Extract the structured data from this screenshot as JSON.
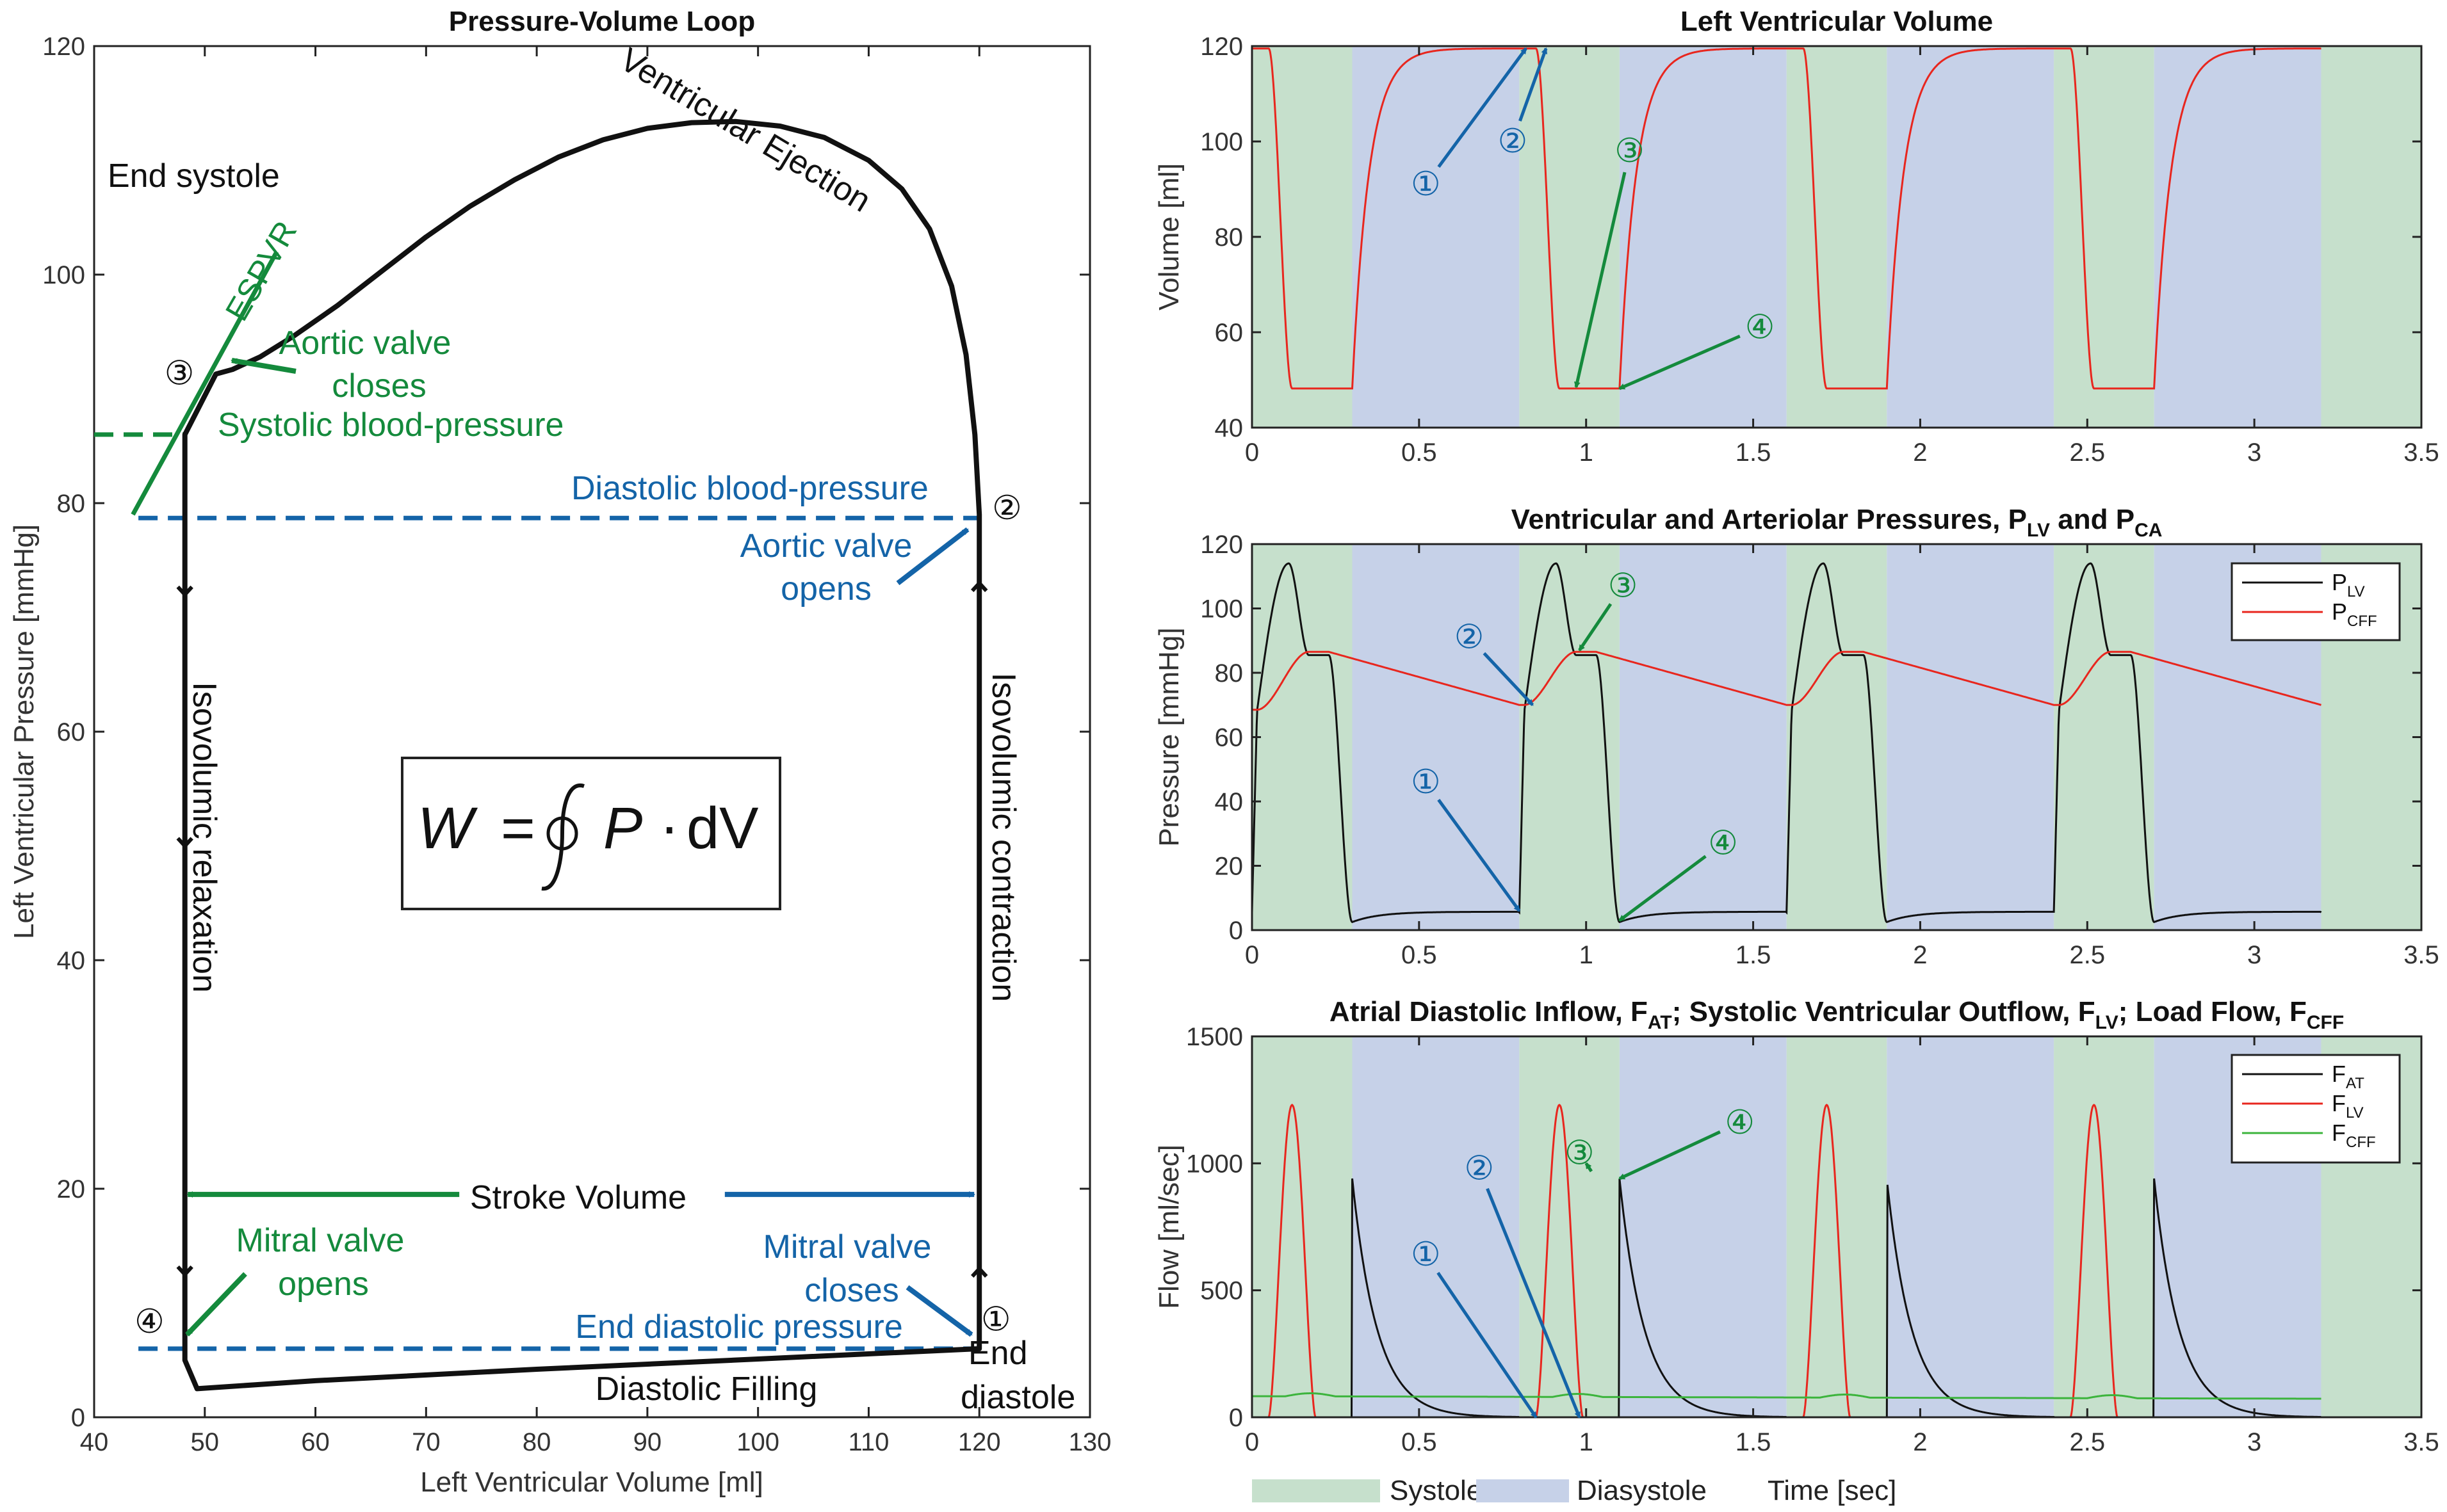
{
  "colors": {
    "systole": "#c6e0cc",
    "diastole": "#c6d1e8",
    "green": "#148a3c",
    "blue": "#1464a8",
    "red": "#e8261e",
    "black": "#111111",
    "cff": "#3cb43c"
  },
  "chart_data": [
    {
      "id": "pv-loop",
      "type": "line",
      "title": "Pressure-Volume Loop",
      "xlabel": "Left Ventricular Volume [ml]",
      "ylabel": "Left Ventricular Pressure [mmHg]",
      "xlim": [
        40,
        130
      ],
      "ylim": [
        0,
        120
      ],
      "xticks": [
        40,
        50,
        60,
        70,
        80,
        90,
        100,
        110,
        120,
        130
      ],
      "yticks": [
        0,
        20,
        40,
        60,
        80,
        100,
        120
      ],
      "loop": {
        "isovolumic_contraction": [
          [
            120,
            6
          ],
          [
            120,
            79
          ]
        ],
        "ejection": [
          [
            120,
            79
          ],
          [
            119.6,
            86
          ],
          [
            118.8,
            93
          ],
          [
            117.5,
            99
          ],
          [
            115.5,
            104
          ],
          [
            113,
            107.5
          ],
          [
            110,
            110
          ],
          [
            106,
            112
          ],
          [
            102,
            113
          ],
          [
            98,
            113.4
          ],
          [
            94,
            113.3
          ],
          [
            90,
            112.8
          ],
          [
            86,
            111.8
          ],
          [
            82,
            110.3
          ],
          [
            78,
            108.3
          ],
          [
            74,
            106
          ],
          [
            70,
            103.3
          ],
          [
            66,
            100.3
          ],
          [
            62,
            97.3
          ],
          [
            58,
            94.6
          ],
          [
            55,
            92.8
          ],
          [
            52.5,
            91.7
          ],
          [
            51,
            91.3
          ]
        ],
        "systolic_descent": [
          [
            51,
            91.3
          ],
          [
            48.2,
            86
          ]
        ],
        "isovolumic_relaxation": [
          [
            48.2,
            86
          ],
          [
            48.2,
            5
          ]
        ],
        "diastolic_filling": [
          [
            48.2,
            5
          ],
          [
            49.3,
            2.5
          ],
          [
            60,
            3.2
          ],
          [
            80,
            4.2
          ],
          [
            100,
            5.1
          ],
          [
            120,
            6
          ]
        ]
      },
      "espvr": {
        "label": "ESPVR",
        "line": [
          [
            43.5,
            79
          ],
          [
            56.5,
            102
          ]
        ]
      },
      "reference_lines": [
        {
          "name": "systolic",
          "y": 86,
          "x": [
            40,
            48.2
          ]
        },
        {
          "name": "diastolic",
          "y": 78.7,
          "x": [
            44,
            120
          ]
        },
        {
          "name": "end-diastolic",
          "y": 6,
          "x": [
            44,
            120
          ]
        }
      ],
      "stroke_volume": {
        "label": "Stroke Volume",
        "x_start": 48,
        "x_end": 120,
        "y": 19.5
      },
      "formula": {
        "W": "W",
        "eq": "=",
        "P": "P",
        "dot": "·",
        "dV": "dV"
      },
      "labels": {
        "end_systole": "End systole",
        "ejection": "Ventricular Ejection",
        "aortic_close_1": "Aortic valve",
        "aortic_close_2": "closes",
        "systolic_bp": "Systolic blood-pressure",
        "diastolic_bp": "Diastolic blood-pressure",
        "aortic_open_1": "Aortic valve",
        "aortic_open_2": "opens",
        "iso_relax": "Isovolumic relaxation",
        "iso_contract": "Isovolumic contraction",
        "mitral_open_1": "Mitral valve",
        "mitral_open_2": "opens",
        "mitral_close_1": "Mitral valve",
        "mitral_close_2": "closes",
        "end_diastolic_p": "End diastolic pressure",
        "diastolic_filling": "Diastolic Filling",
        "end_diastole_1": "End",
        "end_diastole_2": "diastole"
      },
      "markers": [
        {
          "text": "①",
          "x": 121.5,
          "y": 8.5
        },
        {
          "text": "②",
          "x": 122.5,
          "y": 79.5
        },
        {
          "text": "③",
          "x": 47.7,
          "y": 91.3
        },
        {
          "text": "④",
          "x": 45,
          "y": 8.3
        }
      ]
    },
    {
      "id": "lv-volume",
      "type": "line",
      "title": "Left Ventricular Volume",
      "xlabel": "",
      "ylabel": "Volume [ml]",
      "xlim": [
        0,
        3.5
      ],
      "ylim": [
        40,
        120
      ],
      "xticks": [
        0,
        0.5,
        1,
        1.5,
        2,
        2.5,
        3,
        3.5
      ],
      "xtick_labels": [
        "0",
        "0.5",
        "1",
        "1.5",
        "2",
        "2.5",
        "3",
        "3.5"
      ],
      "yticks": [
        40,
        60,
        80,
        100,
        120
      ],
      "period": 0.8,
      "systole_end": 0.3,
      "t_end": 3.2,
      "edv": 119.5,
      "esv": 48.2,
      "series": [
        {
          "name": "V",
          "color": "#e8261e"
        }
      ],
      "markers": [
        {
          "text": "①",
          "x": 0.52,
          "y": 91,
          "color": "blue"
        },
        {
          "text": "②",
          "x": 0.78,
          "y": 100,
          "color": "blue"
        },
        {
          "text": "③",
          "x": 1.13,
          "y": 98,
          "color": "green"
        },
        {
          "text": "④",
          "x": 1.52,
          "y": 61,
          "color": "green"
        }
      ]
    },
    {
      "id": "pressures",
      "type": "line",
      "title": "Ventricular and Arteriolar Pressures, P",
      "title_sub1": "LV",
      "title_mid": " and P",
      "title_sub2": "CA",
      "xlabel": "",
      "ylabel": "Pressure [mmHg]",
      "xlim": [
        0,
        3.5
      ],
      "ylim": [
        0,
        120
      ],
      "xticks": [
        0,
        0.5,
        1,
        1.5,
        2,
        2.5,
        3,
        3.5
      ],
      "xtick_labels": [
        "0",
        "0.5",
        "1",
        "1.5",
        "2",
        "2.5",
        "3",
        "3.5"
      ],
      "yticks": [
        0,
        20,
        40,
        60,
        80,
        100,
        120
      ],
      "series": [
        {
          "name": "P",
          "sub": "LV",
          "color": "#111111"
        },
        {
          "name": "P",
          "sub": "CFF",
          "color": "#e8261e"
        }
      ],
      "markers": [
        {
          "text": "①",
          "x": 0.52,
          "y": 46,
          "color": "blue"
        },
        {
          "text": "②",
          "x": 0.65,
          "y": 91,
          "color": "blue"
        },
        {
          "text": "③",
          "x": 1.11,
          "y": 107,
          "color": "green"
        },
        {
          "text": "④",
          "x": 1.41,
          "y": 27,
          "color": "green"
        }
      ]
    },
    {
      "id": "flows",
      "type": "line",
      "title": "Atrial Diastolic Inflow, F",
      "title_parts": [
        {
          "t": "Atrial Diastolic Inflow, F"
        },
        {
          "s": "AT"
        },
        {
          "t": "; Systolic Ventricular Outflow, F"
        },
        {
          "s": "LV"
        },
        {
          "t": "; Load Flow, F"
        },
        {
          "s": "CFF"
        }
      ],
      "xlabel": "Time [sec]",
      "ylabel": "Flow [ml/sec]",
      "xlim": [
        0,
        3.5
      ],
      "ylim": [
        0,
        1500
      ],
      "xticks": [
        0,
        0.5,
        1,
        1.5,
        2,
        2.5,
        3,
        3.5
      ],
      "xtick_labels": [
        "0",
        "0.5",
        "1",
        "1.5",
        "2",
        "2.5",
        "3",
        "3.5"
      ],
      "yticks": [
        0,
        500,
        1000,
        1500
      ],
      "series": [
        {
          "name": "F",
          "sub": "AT",
          "color": "#111111"
        },
        {
          "name": "F",
          "sub": "LV",
          "color": "#e8261e"
        },
        {
          "name": "F",
          "sub": "CFF",
          "color": "#3cb43c"
        }
      ],
      "markers": [
        {
          "text": "①",
          "x": 0.52,
          "y": 640,
          "color": "blue"
        },
        {
          "text": "②",
          "x": 0.68,
          "y": 980,
          "color": "blue"
        },
        {
          "text": "③",
          "x": 0.98,
          "y": 1040,
          "color": "green"
        },
        {
          "text": "④",
          "x": 1.46,
          "y": 1160,
          "color": "green"
        }
      ],
      "legend_bottom": {
        "systole": "Systole",
        "diastole": "Diasystole"
      }
    }
  ]
}
